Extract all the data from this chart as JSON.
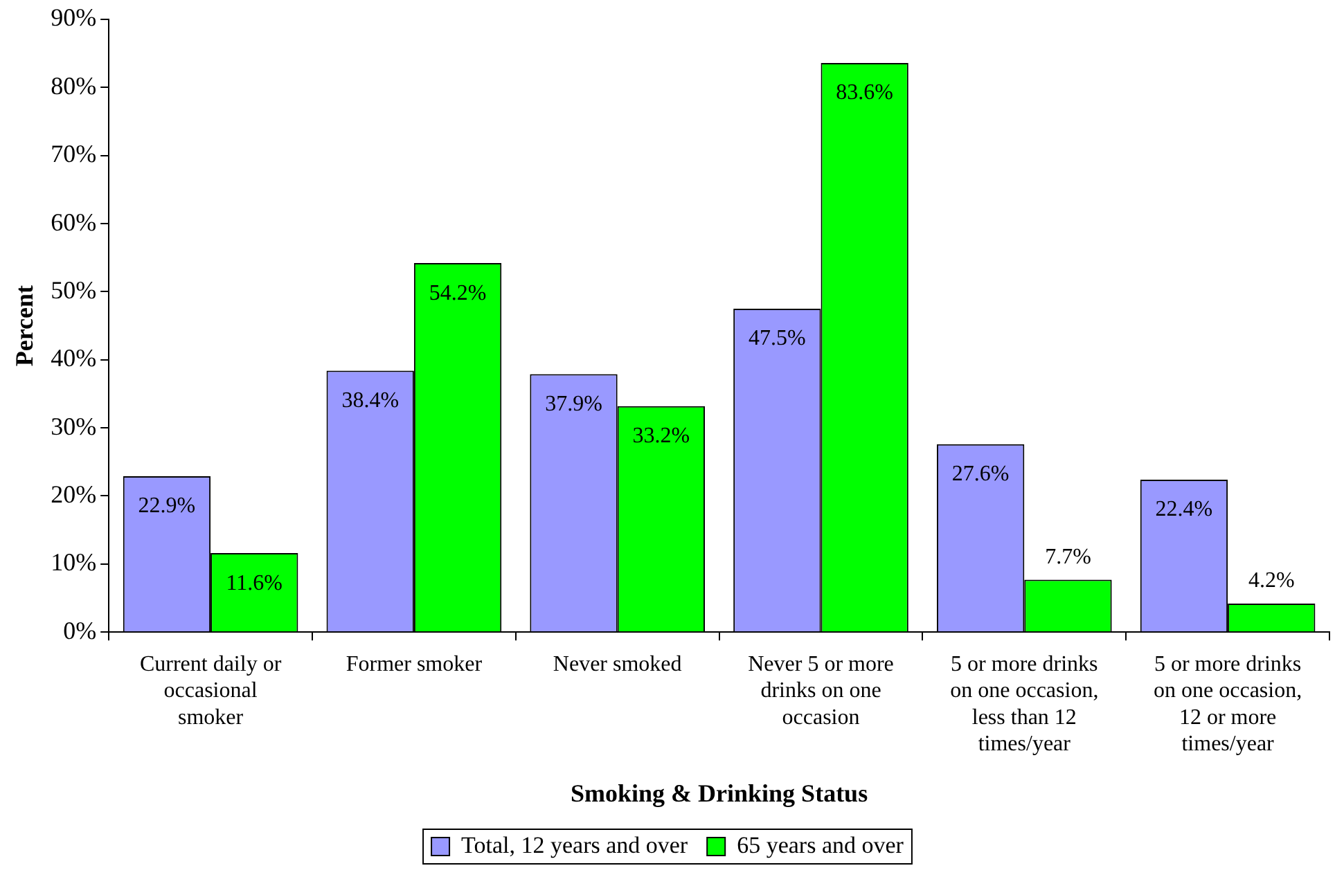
{
  "chart_data": {
    "type": "bar",
    "xlabel": "Smoking & Drinking Status",
    "ylabel": "Percent",
    "categories": [
      "Current daily or occasional smoker",
      "Former smoker",
      "Never smoked",
      "Never 5 or more drinks on one occasion",
      "5 or more drinks on one occasion, less than 12 times/year",
      "5 or more drinks on one occasion, 12 or more times/year"
    ],
    "series": [
      {
        "name": "Total, 12 years and over",
        "color": "#9999ff",
        "values": [
          22.9,
          38.4,
          37.9,
          47.5,
          27.6,
          22.4
        ],
        "value_labels": [
          "22.9%",
          "38.4%",
          "37.9%",
          "47.5%",
          "27.6%",
          "22.4%"
        ]
      },
      {
        "name": "65 years and over",
        "color": "#00ff00",
        "values": [
          11.6,
          54.2,
          33.2,
          83.6,
          7.7,
          4.2
        ],
        "value_labels": [
          "11.6%",
          "54.2%",
          "33.2%",
          "83.6%",
          "7.7%",
          "4.2%"
        ]
      }
    ],
    "ylim": [
      0,
      90
    ],
    "yticks": [
      {
        "value": 0,
        "label": "0%"
      },
      {
        "value": 10,
        "label": "10%"
      },
      {
        "value": 20,
        "label": "20%"
      },
      {
        "value": 30,
        "label": "30%"
      },
      {
        "value": 40,
        "label": "40%"
      },
      {
        "value": 50,
        "label": "50%"
      },
      {
        "value": 60,
        "label": "60%"
      },
      {
        "value": 70,
        "label": "70%"
      },
      {
        "value": 80,
        "label": "80%"
      },
      {
        "value": 90,
        "label": "90%"
      }
    ],
    "grid": false,
    "legend": "bottom"
  }
}
